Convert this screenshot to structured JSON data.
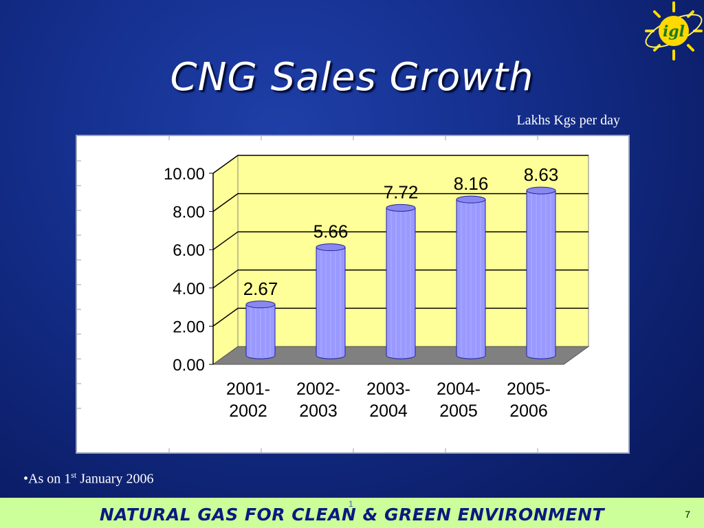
{
  "slide": {
    "title": "CNG Sales Growth",
    "units_label": "Lakhs Kgs per day",
    "footnote_prefix": "•As on 1",
    "footnote_sup": "st",
    "footnote_suffix": " January 2006",
    "footer_slogan": "NATURAL GAS FOR CLEAN & GREEN ENVIRONMENT",
    "footer_mark": "1",
    "page_number": "7",
    "logo_text": "igl",
    "colors": {
      "background": "#15308f",
      "plot_wall": "#ffff99",
      "bar": "#9999ff",
      "floor": "#808080",
      "footer_band": "#ccff99"
    }
  },
  "chart_data": {
    "type": "bar",
    "title": "CNG Sales Growth",
    "ylabel": "Lakhs Kgs per day",
    "categories": [
      [
        "2001-",
        "2002"
      ],
      [
        "2002-",
        "2003"
      ],
      [
        "2003-",
        "2004"
      ],
      [
        "2004-",
        "2005"
      ],
      [
        "2005-",
        "2006"
      ]
    ],
    "values": [
      2.67,
      5.66,
      7.72,
      8.16,
      8.63
    ],
    "value_labels": [
      "2.67",
      "5.66",
      "7.72",
      "8.16",
      "8.63"
    ],
    "ylim": [
      0,
      10
    ],
    "yticks": [
      "0.00",
      "2.00",
      "4.00",
      "6.00",
      "8.00",
      "10.00"
    ],
    "grid": true,
    "style": "3d-cylinder"
  }
}
